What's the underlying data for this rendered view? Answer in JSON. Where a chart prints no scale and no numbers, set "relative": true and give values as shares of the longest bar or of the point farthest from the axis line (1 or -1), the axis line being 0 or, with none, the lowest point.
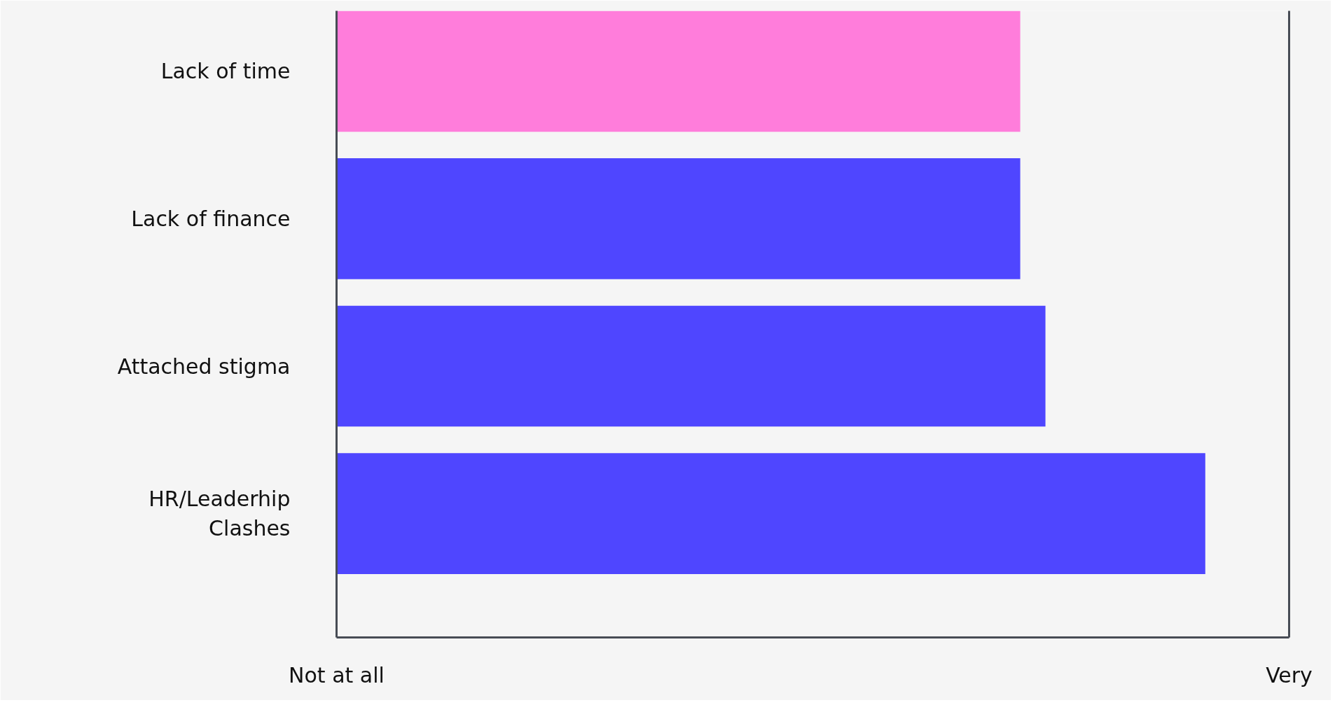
{
  "chart_data": {
    "type": "bar",
    "orientation": "horizontal",
    "relative": true,
    "categories": [
      "Lack of time",
      "Lack of finance",
      "Attached stigma",
      "HR/Leaderhip Clashes"
    ],
    "values": [
      0.787,
      0.787,
      0.816,
      1
    ],
    "colors": [
      "#ff7ddb",
      "#4f46ff",
      "#4f46ff",
      "#4f46ff"
    ],
    "annotations": [
      "Not at all",
      "Very"
    ]
  }
}
